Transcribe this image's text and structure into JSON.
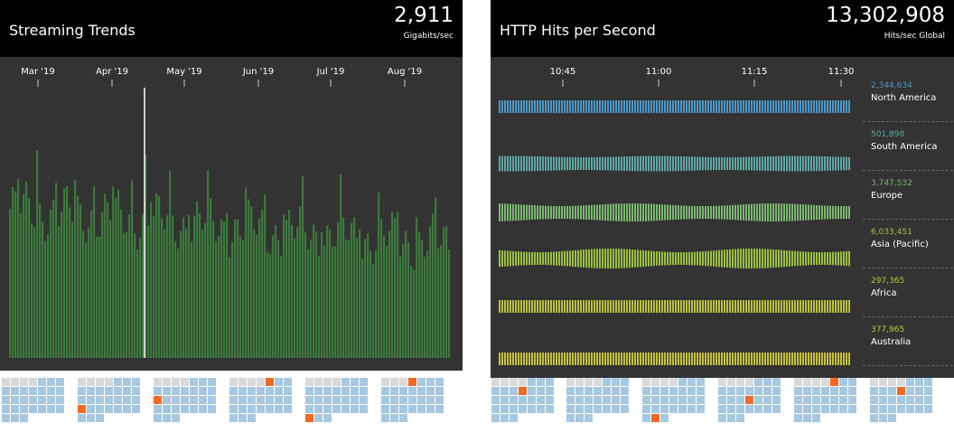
{
  "streaming": {
    "title": "Streaming Trends",
    "total": "2,911",
    "unit": "Gigabits/sec",
    "months": [
      "Mar '19",
      "Apr '19",
      "May '19",
      "Jun '19",
      "Jul '19",
      "Aug '19"
    ]
  },
  "http": {
    "title": "HTTP Hits per Second",
    "total": "13,302,908",
    "unit": "Hits/sec Global",
    "times": [
      "10:45",
      "11:00",
      "11:15",
      "11:30"
    ],
    "regions": [
      {
        "value": "2,344,634",
        "name": "North America",
        "color": "#4b97c8"
      },
      {
        "value": "501,898",
        "name": "South America",
        "color": "#5fa7a2"
      },
      {
        "value": "3,747,532",
        "name": "Europe",
        "color": "#7ab870"
      },
      {
        "value": "6,033,451",
        "name": "Asia (Pacific)",
        "color": "#9cbf3d"
      },
      {
        "value": "297,365",
        "name": "Africa",
        "color": "#b9c238"
      },
      {
        "value": "377,965",
        "name": "Australia",
        "color": "#c8c233"
      }
    ]
  },
  "colors": {
    "bar": "#3b7a3b",
    "cell": "#a6c8e0",
    "cell_empty": "#d9d9d9",
    "cell_marked": "#f26722"
  }
}
